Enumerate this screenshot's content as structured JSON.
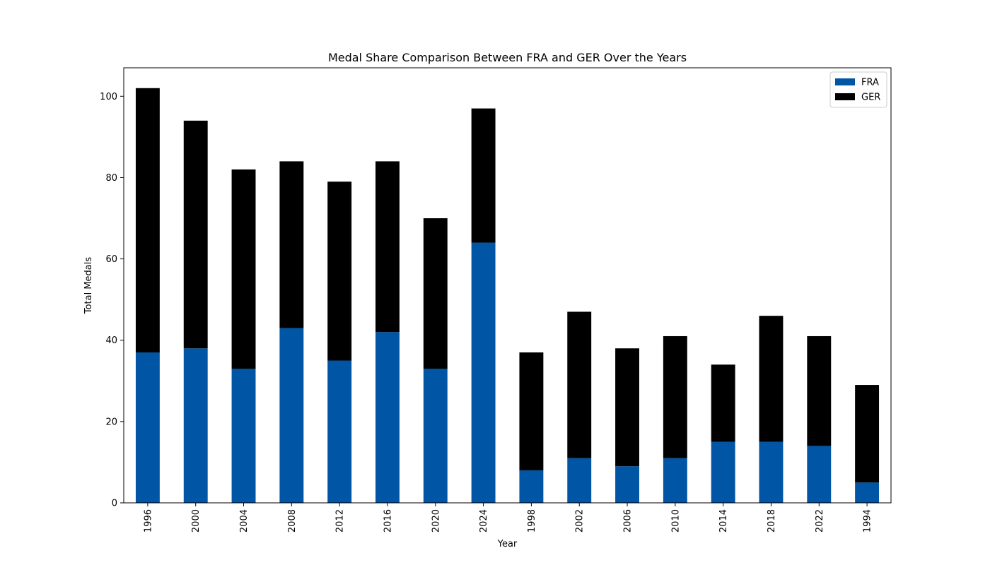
{
  "chart_data": {
    "type": "bar",
    "stacked": true,
    "title": "Medal Share Comparison Between FRA and GER Over the Years",
    "xlabel": "Year",
    "ylabel": "Total Medals",
    "categories": [
      "1996",
      "2000",
      "2004",
      "2008",
      "2012",
      "2016",
      "2020",
      "2024",
      "1998",
      "2002",
      "2006",
      "2010",
      "2014",
      "2018",
      "2022",
      "1994"
    ],
    "series": [
      {
        "name": "FRA",
        "color": "#0055a4",
        "values": [
          37,
          38,
          33,
          43,
          35,
          42,
          33,
          64,
          8,
          11,
          9,
          11,
          15,
          15,
          14,
          5
        ]
      },
      {
        "name": "GER",
        "color": "#000000",
        "values": [
          65,
          56,
          49,
          41,
          44,
          42,
          37,
          33,
          29,
          36,
          29,
          30,
          19,
          31,
          27,
          24
        ]
      }
    ],
    "ylim": [
      0,
      107
    ],
    "yticks": [
      0,
      20,
      40,
      60,
      80,
      100
    ],
    "grid": false,
    "legend_position": "top-right"
  }
}
